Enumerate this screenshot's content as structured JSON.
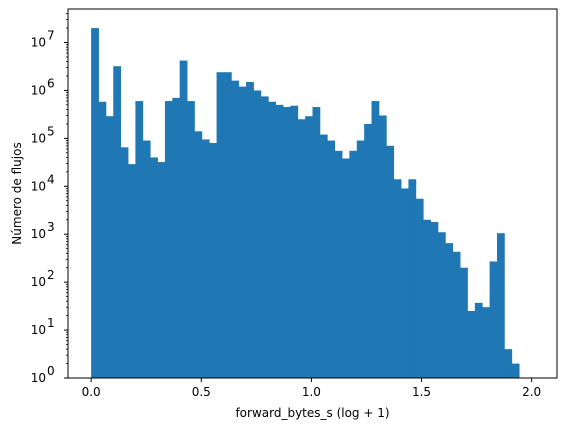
{
  "chart_data": {
    "type": "bar",
    "title": "",
    "xlabel": "forward_bytes_s (log + 1)",
    "ylabel": "Número de flujos",
    "yscale": "log",
    "xlim": [
      -0.105,
      2.115
    ],
    "ylim": [
      1,
      50000000
    ],
    "grid": false,
    "color": "#1f77b4",
    "x_ticks": [
      {
        "value": 0.0,
        "label": "0.0"
      },
      {
        "value": 0.5,
        "label": "0.5"
      },
      {
        "value": 1.0,
        "label": "1.0"
      },
      {
        "value": 1.5,
        "label": "1.5"
      },
      {
        "value": 2.0,
        "label": "2.0"
      }
    ],
    "y_ticks": [
      {
        "value": 1,
        "base": "10",
        "exp": "0"
      },
      {
        "value": 10,
        "base": "10",
        "exp": "1"
      },
      {
        "value": 100,
        "base": "10",
        "exp": "2"
      },
      {
        "value": 1000,
        "base": "10",
        "exp": "3"
      },
      {
        "value": 10000,
        "base": "10",
        "exp": "4"
      },
      {
        "value": 100000,
        "base": "10",
        "exp": "5"
      },
      {
        "value": 1000000,
        "base": "10",
        "exp": "6"
      },
      {
        "value": 10000000,
        "base": "10",
        "exp": "7"
      }
    ],
    "bin_start": 0.0,
    "bin_width": 0.0335,
    "values": [
      20000000,
      580000,
      290000,
      3200000,
      65000,
      29000,
      600000,
      90000,
      40000,
      32000,
      600000,
      700000,
      4200000,
      600000,
      140000,
      95000,
      80000,
      2400000,
      2400000,
      1600000,
      1200000,
      1500000,
      1000000,
      750000,
      580000,
      500000,
      450000,
      480000,
      250000,
      290000,
      450000,
      120000,
      90000,
      55000,
      38000,
      55000,
      90000,
      200000,
      600000,
      300000,
      70000,
      14000,
      9000,
      14000,
      5500,
      2000,
      1800,
      1100,
      650,
      430,
      200,
      25,
      37,
      30,
      270,
      1050,
      4,
      2
    ]
  }
}
